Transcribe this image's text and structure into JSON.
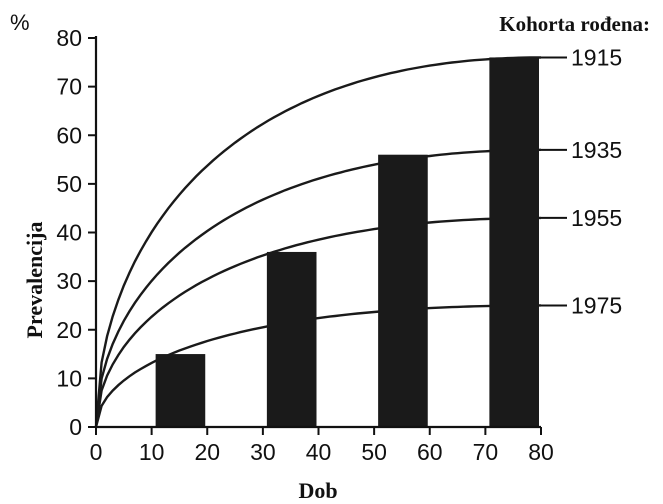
{
  "chart_data": {
    "type": "bar",
    "title": "",
    "unit_label": "%",
    "xlabel": "Dob",
    "ylabel": "Prevalencija",
    "xlim": [
      0,
      80
    ],
    "ylim": [
      0,
      80
    ],
    "x_ticks": [
      "0",
      "10",
      "20",
      "30",
      "40",
      "50",
      "60",
      "70",
      "80"
    ],
    "y_ticks": [
      "0",
      "10",
      "20",
      "30",
      "40",
      "50",
      "60",
      "70",
      "80"
    ],
    "bars": [
      {
        "x_start": 10,
        "x_end": 20,
        "value": 15
      },
      {
        "x_start": 30,
        "x_end": 40,
        "value": 36
      },
      {
        "x_start": 50,
        "x_end": 60,
        "value": 56
      },
      {
        "x_start": 70,
        "x_end": 80,
        "value": 76
      }
    ],
    "bar_color": "#1a1a1a",
    "curve_color": "#1a1a1a",
    "legend_title": "Kohorta rođena:",
    "series": [
      {
        "name": "1915",
        "final_value": 76
      },
      {
        "name": "1935",
        "final_value": 57
      },
      {
        "name": "1955",
        "final_value": 43
      },
      {
        "name": "1975",
        "final_value": 25
      }
    ],
    "grid": false
  }
}
